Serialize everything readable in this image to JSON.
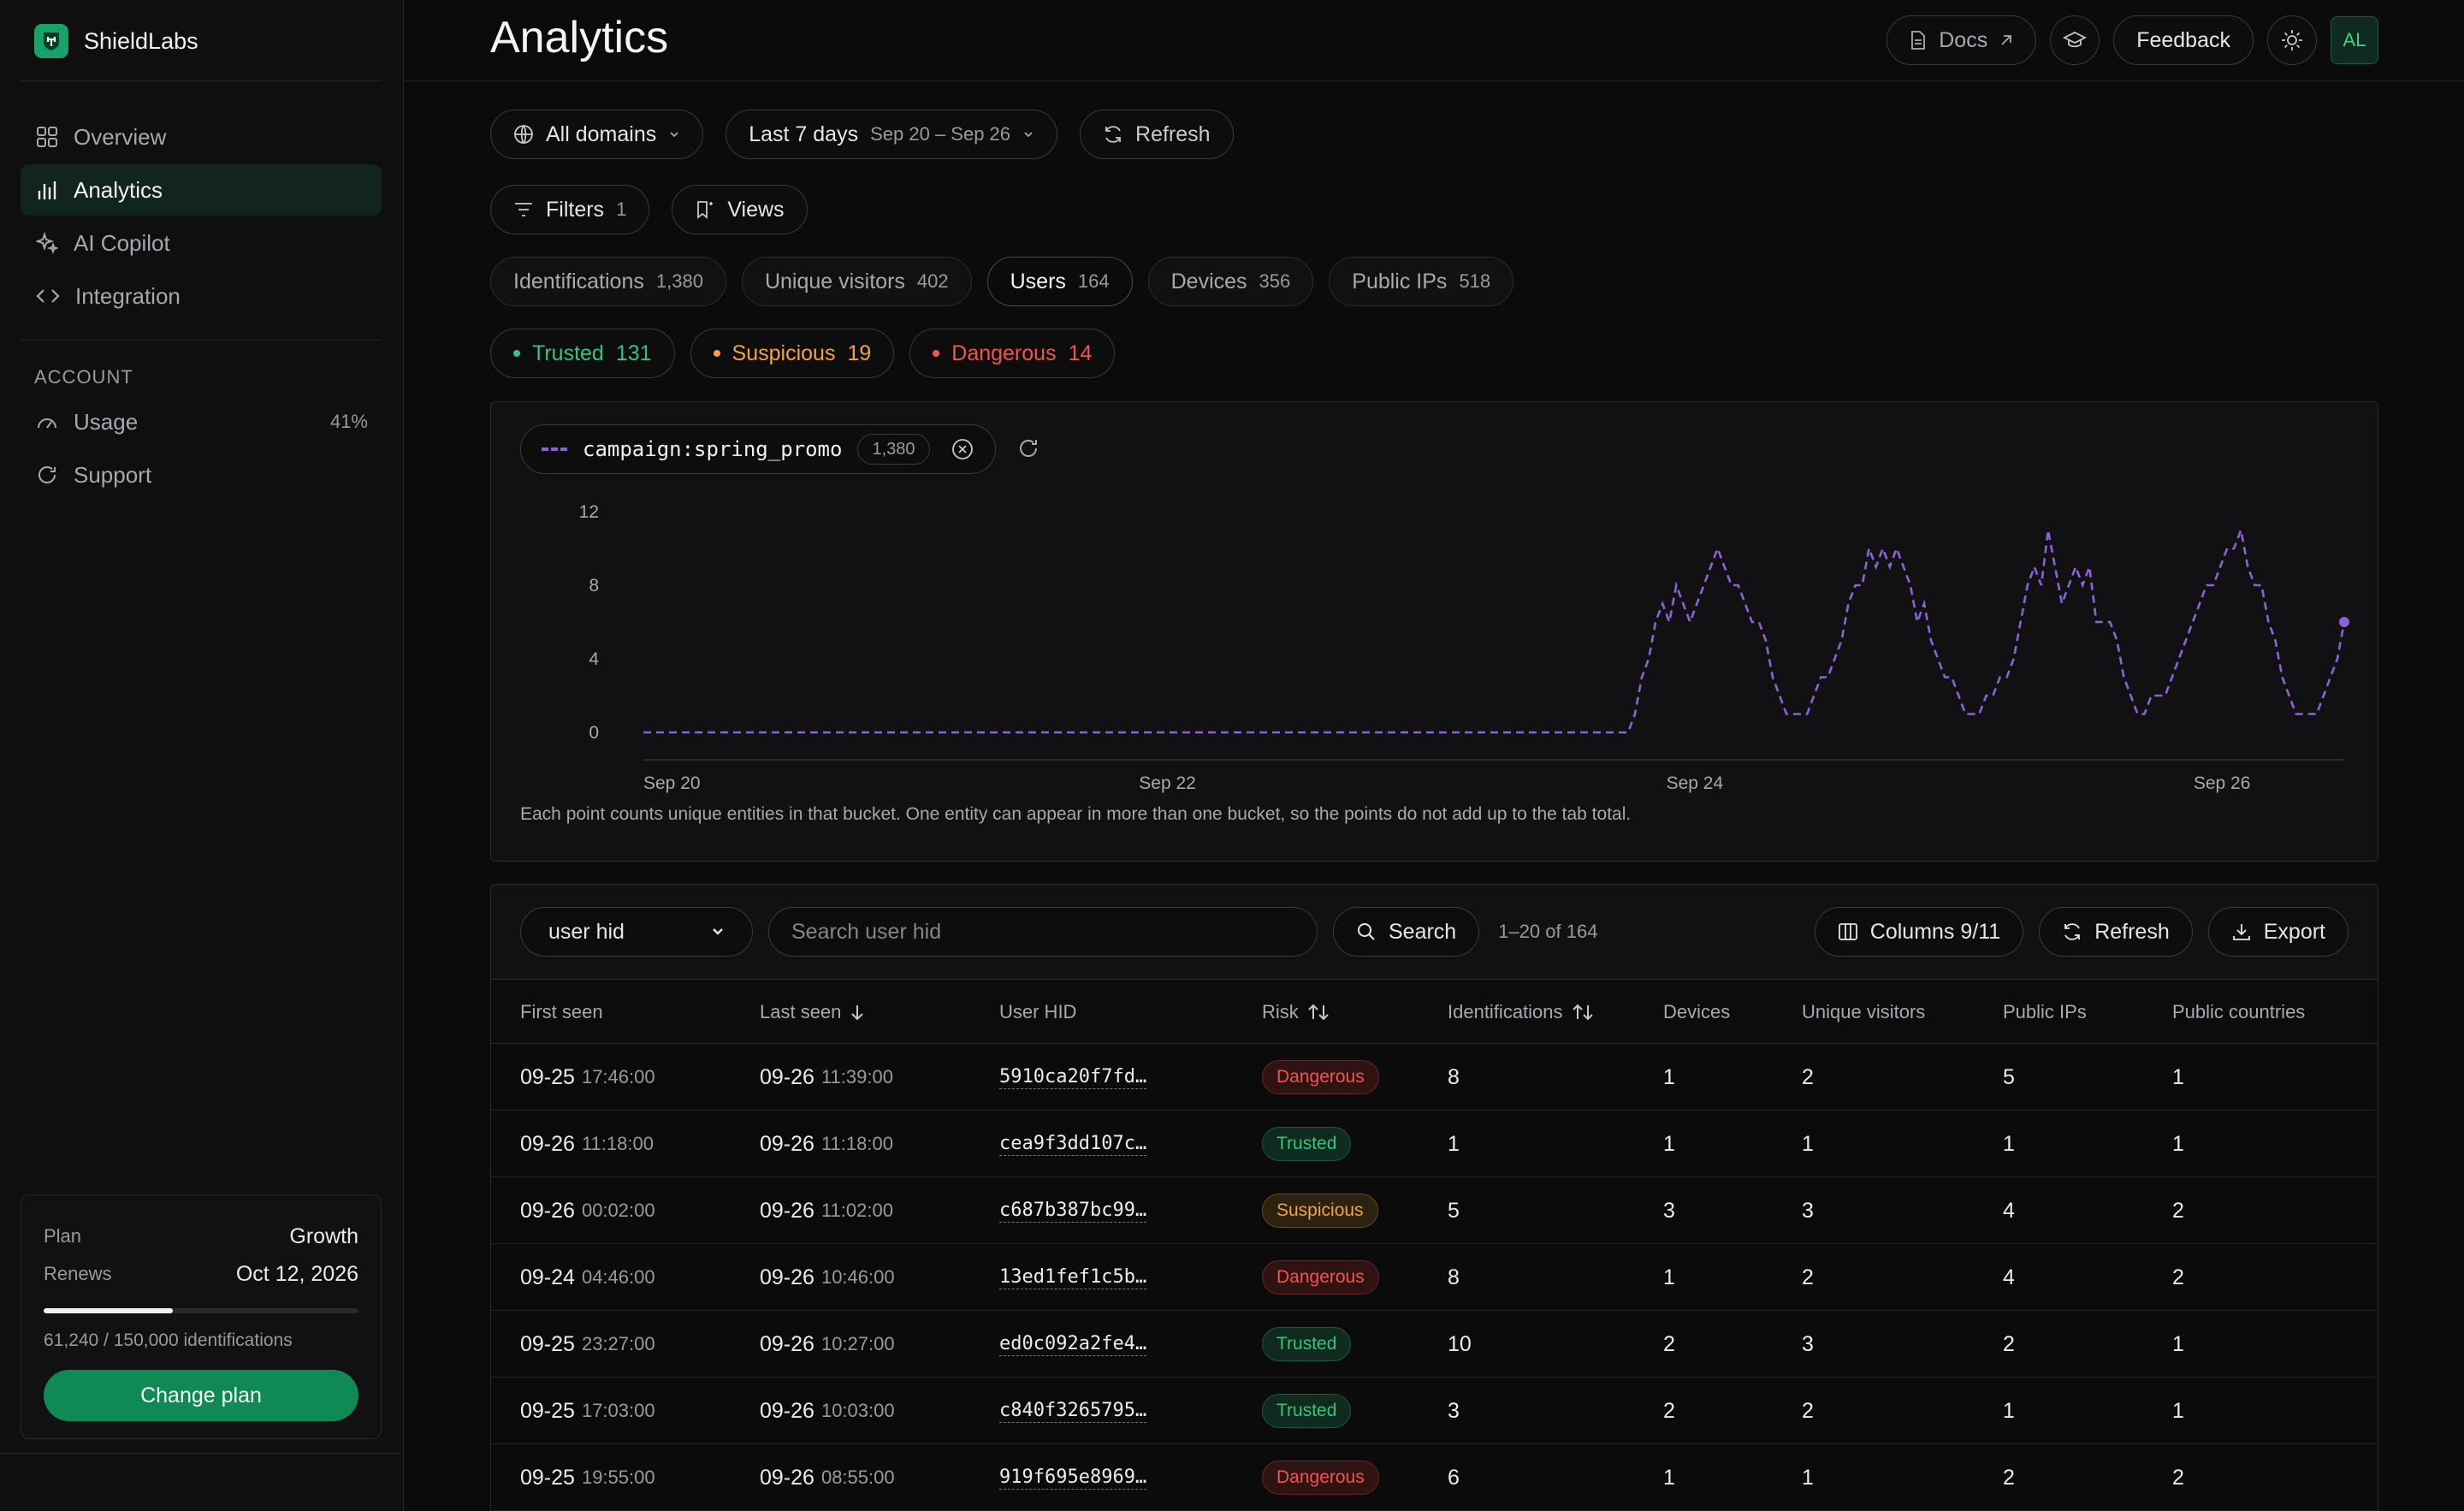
{
  "brand": {
    "name": "ShieldLabs",
    "accent": "#17a26a"
  },
  "nav": {
    "items": [
      {
        "label": "Overview",
        "icon": "grid-icon"
      },
      {
        "label": "Analytics",
        "icon": "bar-chart-icon"
      },
      {
        "label": "AI Copilot",
        "icon": "sparkle-icon"
      },
      {
        "label": "Integration",
        "icon": "code-icon"
      }
    ],
    "account_label": "ACCOUNT",
    "account_items": [
      {
        "label": "Usage",
        "value": "41%",
        "icon": "gauge-icon"
      },
      {
        "label": "Support",
        "icon": "support-icon"
      }
    ]
  },
  "plan": {
    "plan_label": "Plan",
    "plan_value": "Growth",
    "renews_label": "Renews",
    "renews_value": "Oct 12, 2026",
    "usage_fraction": 0.41,
    "usage_text": "61,240 / 150,000 identifications",
    "button": "Change plan"
  },
  "header": {
    "title": "Analytics",
    "docs": "Docs",
    "feedback": "Feedback",
    "avatar": "AL"
  },
  "controls": {
    "domains": "All domains",
    "range_label": "Last 7 days",
    "range_dates": "Sep 20 – Sep 26",
    "refresh": "Refresh",
    "filters": "Filters",
    "filters_count": "1",
    "views": "Views"
  },
  "tabs": [
    {
      "label": "Identifications",
      "count": "1,380"
    },
    {
      "label": "Unique visitors",
      "count": "402"
    },
    {
      "label": "Users",
      "count": "164"
    },
    {
      "label": "Devices",
      "count": "356"
    },
    {
      "label": "Public IPs",
      "count": "518"
    }
  ],
  "risk_filters": {
    "trusted": {
      "label": "Trusted",
      "count": "131",
      "color": "#34c47c"
    },
    "suspicious": {
      "label": "Suspicious",
      "count": "19",
      "color": "#f2a33a"
    },
    "dangerous": {
      "label": "Dangerous",
      "count": "14",
      "color": "#f2554d"
    }
  },
  "series_chip": {
    "name": "campaign:spring_promo",
    "count": "1,380"
  },
  "chart_data": {
    "type": "line",
    "series": [
      {
        "name": "campaign:spring_promo",
        "color": "#8b63d9",
        "dashed": true,
        "values": [
          0,
          0,
          0,
          0,
          0,
          0,
          0,
          0,
          0,
          0,
          0,
          0,
          0,
          0,
          0,
          0,
          0,
          0,
          0,
          0,
          0,
          0,
          0,
          0,
          0,
          0,
          0,
          0,
          0,
          0,
          0,
          0,
          0,
          0,
          0,
          0,
          0,
          0,
          0,
          0,
          0,
          0,
          0,
          0,
          0,
          0,
          0,
          0,
          0,
          0,
          0,
          0,
          0,
          0,
          0,
          0,
          0,
          0,
          0,
          0,
          0,
          0,
          0,
          0,
          0,
          0,
          0,
          0,
          0,
          0,
          0,
          0,
          0,
          0,
          0,
          0,
          0,
          0,
          0,
          0,
          0,
          0,
          0,
          0,
          0,
          0,
          0,
          0,
          0,
          0,
          0,
          0,
          0,
          0,
          0,
          0,
          0,
          0,
          0,
          0,
          0,
          0,
          0,
          0,
          0,
          0,
          0,
          0,
          0,
          0,
          0,
          0,
          0,
          0,
          0,
          0,
          0,
          0,
          0,
          0,
          0,
          0,
          0,
          0,
          0,
          0,
          0,
          0,
          0,
          0,
          0,
          0,
          0,
          0,
          0,
          0,
          0,
          0,
          0,
          0,
          0,
          0,
          0,
          0,
          1,
          3,
          4,
          6,
          7,
          6,
          8,
          7,
          6,
          7,
          8,
          9,
          10,
          9,
          8,
          8,
          7,
          6,
          6,
          5,
          3,
          2,
          1,
          1,
          1,
          1,
          2,
          3,
          3,
          4,
          5,
          7,
          8,
          8,
          10,
          9,
          10,
          9,
          10,
          9,
          8,
          6,
          7,
          5,
          4,
          3,
          3,
          2,
          1,
          1,
          1,
          2,
          2,
          3,
          3,
          4,
          6,
          8,
          9,
          8,
          11,
          9,
          7,
          8,
          9,
          8,
          9,
          6,
          6,
          6,
          5,
          3,
          2,
          1,
          1,
          2,
          2,
          2,
          3,
          4,
          5,
          6,
          7,
          8,
          8,
          9,
          10,
          10,
          11,
          9,
          8,
          8,
          6,
          5,
          3,
          2,
          1,
          1,
          1,
          1,
          2,
          3,
          4,
          6
        ]
      }
    ],
    "x_ticks": [
      "Sep 20",
      "Sep 22",
      "Sep 24",
      "Sep 26"
    ],
    "y_ticks": [
      "0",
      "4",
      "8",
      "12"
    ],
    "ylim": [
      0,
      12
    ],
    "note": "Each point counts unique entities in that bucket. One entity can appear in more than one bucket, so the points do not add up to the tab total."
  },
  "table": {
    "select_value": "user hid",
    "search_placeholder": "Search user hid",
    "search_button": "Search",
    "range_text": "1–20 of 164",
    "columns_button": "Columns 9/11",
    "refresh_button": "Refresh",
    "export_button": "Export",
    "headers": [
      "First seen",
      "Last seen",
      "User HID",
      "Risk",
      "Identifications",
      "Devices",
      "Unique visitors",
      "Public IPs",
      "Public countries"
    ],
    "rows": [
      {
        "first_date": "09-25",
        "first_time": "17:46:00",
        "last_date": "09-26",
        "last_time": "11:39:00",
        "hid": "5910ca20f7fd…",
        "risk": "Dangerous",
        "ident": "8",
        "devices": "1",
        "visitors": "2",
        "ips": "5",
        "countries": "1"
      },
      {
        "first_date": "09-26",
        "first_time": "11:18:00",
        "last_date": "09-26",
        "last_time": "11:18:00",
        "hid": "cea9f3dd107c…",
        "risk": "Trusted",
        "ident": "1",
        "devices": "1",
        "visitors": "1",
        "ips": "1",
        "countries": "1"
      },
      {
        "first_date": "09-26",
        "first_time": "00:02:00",
        "last_date": "09-26",
        "last_time": "11:02:00",
        "hid": "c687b387bc99…",
        "risk": "Suspicious",
        "ident": "5",
        "devices": "3",
        "visitors": "3",
        "ips": "4",
        "countries": "2"
      },
      {
        "first_date": "09-24",
        "first_time": "04:46:00",
        "last_date": "09-26",
        "last_time": "10:46:00",
        "hid": "13ed1fef1c5b…",
        "risk": "Dangerous",
        "ident": "8",
        "devices": "1",
        "visitors": "2",
        "ips": "4",
        "countries": "2"
      },
      {
        "first_date": "09-25",
        "first_time": "23:27:00",
        "last_date": "09-26",
        "last_time": "10:27:00",
        "hid": "ed0c092a2fe4…",
        "risk": "Trusted",
        "ident": "10",
        "devices": "2",
        "visitors": "3",
        "ips": "2",
        "countries": "1"
      },
      {
        "first_date": "09-25",
        "first_time": "17:03:00",
        "last_date": "09-26",
        "last_time": "10:03:00",
        "hid": "c840f3265795…",
        "risk": "Trusted",
        "ident": "3",
        "devices": "2",
        "visitors": "2",
        "ips": "1",
        "countries": "1"
      },
      {
        "first_date": "09-25",
        "first_time": "19:55:00",
        "last_date": "09-26",
        "last_time": "08:55:00",
        "hid": "919f695e8969…",
        "risk": "Dangerous",
        "ident": "6",
        "devices": "1",
        "visitors": "1",
        "ips": "2",
        "countries": "2"
      }
    ]
  }
}
